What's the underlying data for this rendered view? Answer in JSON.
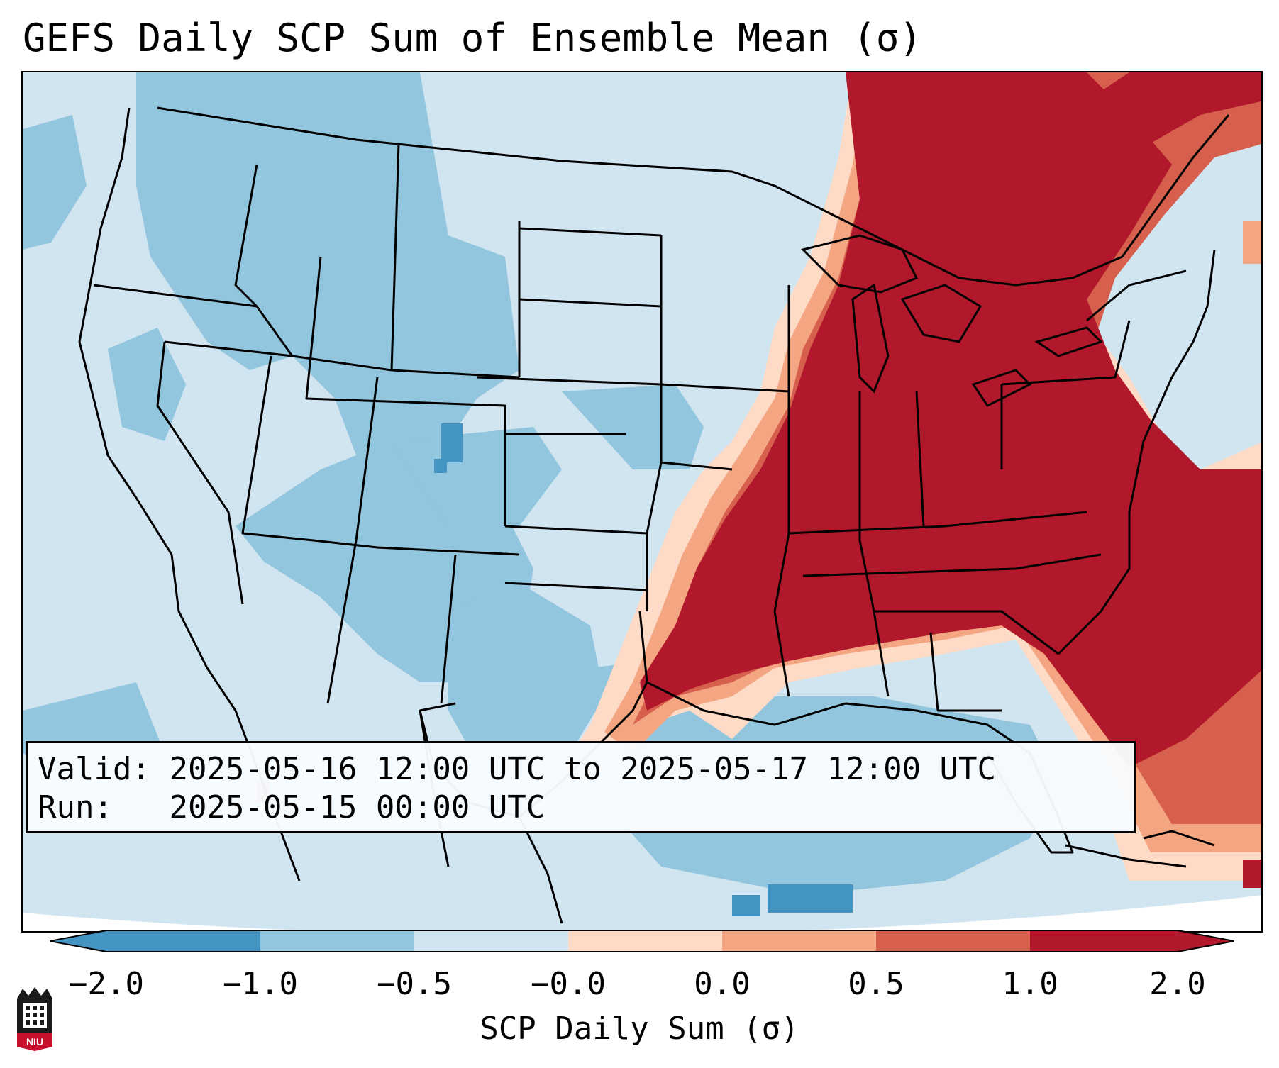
{
  "title": "GEFS Daily SCP Sum of Ensemble Mean (σ)",
  "info": {
    "valid_label": "Valid:",
    "valid_value": "2025-05-16 12:00 UTC to 2025-05-17 12:00 UTC",
    "run_label": "Run:  ",
    "run_value": "2025-05-15 00:00 UTC"
  },
  "colorbar": {
    "label": "SCP Daily Sum (σ)",
    "ticks": [
      "−2.0",
      "−1.0",
      "−0.5",
      "−0.0",
      "0.0",
      "0.5",
      "1.0",
      "2.0"
    ],
    "colors": [
      "#4393c3",
      "#92c5de",
      "#d1e5f0",
      "#fddbc7",
      "#f4a582",
      "#d6604d",
      "#b2182b"
    ],
    "extend": "both"
  },
  "map": {
    "projection": "Lambert Conformal (CONUS)",
    "field_levels": {
      "very_low": "#4393c3",
      "low": "#92c5de",
      "neutral_low": "#d1e5f0",
      "neutral_high": "#fddbc7",
      "mid_high": "#f4a582",
      "high": "#d6604d",
      "very_high": "#b2182b"
    }
  },
  "logo": {
    "name": "NIU",
    "icon": "niu-huskie-logo-icon"
  }
}
